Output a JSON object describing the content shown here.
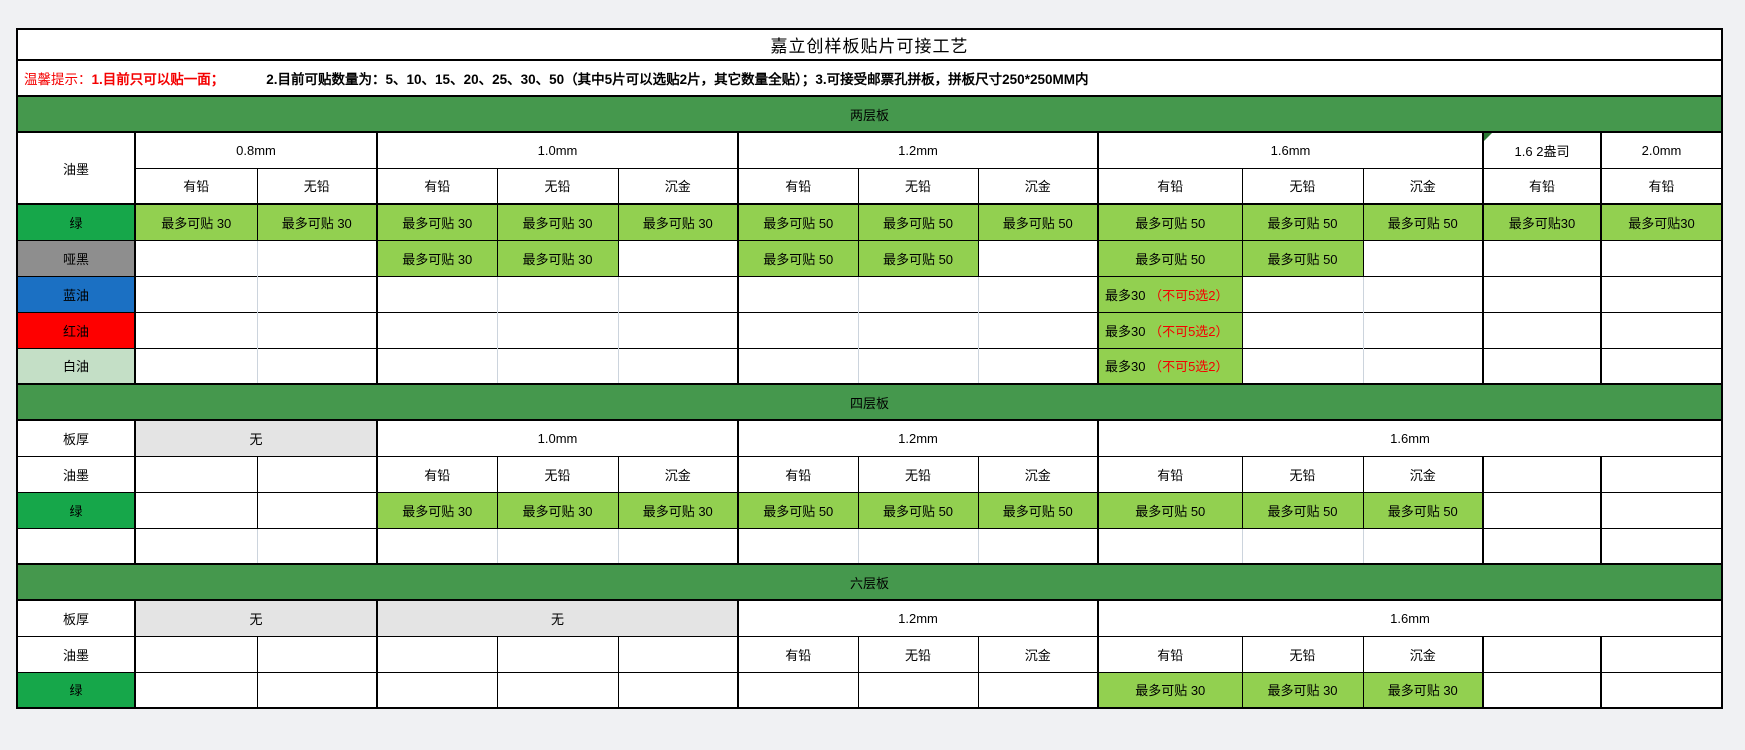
{
  "page": {
    "title": "嘉立创样板贴片可接工艺"
  },
  "tip": {
    "label": "温馨提示：",
    "items": [
      {
        "t": "1.目前只可以贴一面；",
        "red": true,
        "gap": true
      },
      {
        "t": "2.目前可贴数量为：5、10、15、20、25、30、50（其中5片可以选贴2片，其它数量全贴）；",
        "red": false,
        "gap": false
      },
      {
        "t": "3.可接受邮票孔拼板，拼板尺寸250*250MM内",
        "red": false,
        "gap": false
      }
    ]
  },
  "colors": {
    "band": "#45984d",
    "label_green": "#16a74a",
    "cell_green": "#92d050",
    "label_gray": "#8e8e8e",
    "label_blue": "#1b70c3",
    "label_red": "#fe0000",
    "label_white_oil": "#c4dfc6",
    "fill_gray": "#e4e4e4",
    "red_text": "#f40000",
    "grid_light": "#ccd4dd",
    "page_bg": "#f0f1f3"
  },
  "table": {
    "rows": [
      {
        "name": "title-row",
        "cls": "title",
        "cells": [
          {
            "t": "嘉立创样板贴片可接工艺",
            "cs": 14,
            "n": "page-title"
          }
        ]
      },
      {
        "name": "tip-row",
        "cls": "tip",
        "tip": true
      },
      {
        "name": "section-band-two-layer",
        "cls": "band",
        "cells": [
          {
            "t": "两层板",
            "cs": 14,
            "bg": "band",
            "n": "section-title-two-layer"
          }
        ]
      },
      {
        "name": "two-layer-thickness-header",
        "cell_name": "thickness-header",
        "cells": [
          {
            "t": "油墨",
            "rs": 2,
            "n": "ink-corner-header"
          },
          {
            "t": "0.8mm",
            "cs": 2
          },
          {
            "t": "1.0mm",
            "cs": 3
          },
          {
            "t": "1.2mm",
            "cs": 3
          },
          {
            "t": "1.6mm",
            "cs": 3
          },
          {
            "t": "1.6  2盎司",
            "flag": true
          },
          {
            "t": "2.0mm"
          }
        ]
      },
      {
        "name": "two-layer-process-header",
        "offset": 1,
        "cell_name": "process-header",
        "cells": [
          {
            "t": "有铅"
          },
          {
            "t": "无铅"
          },
          {
            "t": "有铅"
          },
          {
            "t": "无铅"
          },
          {
            "t": "沉金"
          },
          {
            "t": "有铅"
          },
          {
            "t": "无铅"
          },
          {
            "t": "沉金"
          },
          {
            "t": "有铅"
          },
          {
            "t": "无铅"
          },
          {
            "t": "沉金"
          },
          {
            "t": "有铅"
          },
          {
            "t": "有铅"
          }
        ]
      },
      {
        "name": "row-green",
        "cls": "firstdata",
        "cell_name": "capacity-cell",
        "cells": [
          {
            "t": "绿",
            "bg": "label_green",
            "n": "row-label-green"
          },
          {
            "t": "最多可贴 30",
            "bg": "cell_green"
          },
          {
            "t": "最多可贴 30",
            "bg": "cell_green"
          },
          {
            "t": "最多可贴 30",
            "bg": "cell_green"
          },
          {
            "t": "最多可贴 30",
            "bg": "cell_green"
          },
          {
            "t": "最多可贴 30",
            "bg": "cell_green"
          },
          {
            "t": "最多可贴 50",
            "bg": "cell_green"
          },
          {
            "t": "最多可贴 50",
            "bg": "cell_green"
          },
          {
            "t": "最多可贴 50",
            "bg": "cell_green"
          },
          {
            "t": "最多可贴 50",
            "bg": "cell_green"
          },
          {
            "t": "最多可贴 50",
            "bg": "cell_green"
          },
          {
            "t": "最多可贴 50",
            "bg": "cell_green"
          },
          {
            "t": "最多可贴30",
            "bg": "cell_green"
          },
          {
            "t": "最多可贴30",
            "bg": "cell_green"
          }
        ]
      },
      {
        "name": "row-matte-black",
        "lite": true,
        "cell_name": "capacity-cell",
        "cells": [
          {
            "t": "哑黑",
            "bg": "label_gray",
            "n": "row-label-matte-black"
          },
          {
            "t": ""
          },
          {
            "t": ""
          },
          {
            "t": "最多可贴 30",
            "bg": "cell_green"
          },
          {
            "t": "最多可贴 30",
            "bg": "cell_green"
          },
          {
            "t": ""
          },
          {
            "t": "最多可贴 50",
            "bg": "cell_green"
          },
          {
            "t": "最多可贴 50",
            "bg": "cell_green"
          },
          {
            "t": ""
          },
          {
            "t": "最多可贴 50",
            "bg": "cell_green"
          },
          {
            "t": "最多可贴 50",
            "bg": "cell_green"
          },
          {
            "t": ""
          },
          {
            "t": ""
          },
          {
            "t": ""
          }
        ]
      },
      {
        "name": "row-blue-oil",
        "lite": true,
        "cell_name": "capacity-cell",
        "cells": [
          {
            "t": "蓝油",
            "bg": "label_blue",
            "n": "row-label-blue-oil"
          },
          {
            "t": ""
          },
          {
            "t": ""
          },
          {
            "t": ""
          },
          {
            "t": ""
          },
          {
            "t": ""
          },
          {
            "t": ""
          },
          {
            "t": ""
          },
          {
            "t": ""
          },
          {
            "parts": [
              {
                "t": "最多30 "
              },
              {
                "t": "（不可5选2）",
                "red": true
              }
            ],
            "bg": "cell_green",
            "al": "l",
            "n": "limit-note-cell"
          },
          {
            "t": ""
          },
          {
            "t": ""
          },
          {
            "t": ""
          },
          {
            "t": ""
          }
        ]
      },
      {
        "name": "row-red-oil",
        "lite": true,
        "cell_name": "capacity-cell",
        "cells": [
          {
            "t": "红油",
            "bg": "label_red",
            "n": "row-label-red-oil"
          },
          {
            "t": ""
          },
          {
            "t": ""
          },
          {
            "t": ""
          },
          {
            "t": ""
          },
          {
            "t": ""
          },
          {
            "t": ""
          },
          {
            "t": ""
          },
          {
            "t": ""
          },
          {
            "parts": [
              {
                "t": "最多30 "
              },
              {
                "t": "（不可5选2）",
                "red": true
              }
            ],
            "bg": "cell_green",
            "al": "l",
            "n": "limit-note-cell"
          },
          {
            "t": ""
          },
          {
            "t": ""
          },
          {
            "t": ""
          },
          {
            "t": ""
          }
        ]
      },
      {
        "name": "row-white-oil",
        "lite": true,
        "cell_name": "capacity-cell",
        "cells": [
          {
            "t": "白油",
            "bg": "label_white_oil",
            "n": "row-label-white-oil"
          },
          {
            "t": ""
          },
          {
            "t": ""
          },
          {
            "t": ""
          },
          {
            "t": ""
          },
          {
            "t": ""
          },
          {
            "t": ""
          },
          {
            "t": ""
          },
          {
            "t": ""
          },
          {
            "parts": [
              {
                "t": "最多30 "
              },
              {
                "t": "（不可5选2）",
                "red": true
              }
            ],
            "bg": "cell_green",
            "al": "l",
            "n": "limit-note-cell"
          },
          {
            "t": ""
          },
          {
            "t": ""
          },
          {
            "t": ""
          },
          {
            "t": ""
          }
        ]
      },
      {
        "name": "section-band-four-layer",
        "cls": "band",
        "cells": [
          {
            "t": "四层板",
            "cs": 14,
            "bg": "band",
            "n": "section-title-four-layer"
          }
        ]
      },
      {
        "name": "four-layer-thickness-row",
        "cell_name": "thickness-header",
        "cells": [
          {
            "t": "板厚",
            "n": "thickness-label"
          },
          {
            "t": "无",
            "cs": 2,
            "bg": "fill_gray"
          },
          {
            "t": "1.0mm",
            "cs": 3
          },
          {
            "t": "1.2mm",
            "cs": 3
          },
          {
            "t": "1.6mm",
            "cs": 5
          }
        ]
      },
      {
        "name": "four-layer-ink-header",
        "cell_name": "process-header",
        "cells": [
          {
            "t": "油墨",
            "n": "ink-label"
          },
          {
            "t": ""
          },
          {
            "t": ""
          },
          {
            "t": "有铅"
          },
          {
            "t": "无铅"
          },
          {
            "t": "沉金"
          },
          {
            "t": "有铅"
          },
          {
            "t": "无铅"
          },
          {
            "t": "沉金"
          },
          {
            "t": "有铅"
          },
          {
            "t": "无铅"
          },
          {
            "t": "沉金"
          },
          {
            "t": ""
          },
          {
            "t": ""
          }
        ]
      },
      {
        "name": "four-layer-row-green",
        "cell_name": "capacity-cell",
        "cells": [
          {
            "t": "绿",
            "bg": "label_green",
            "n": "row-label-green"
          },
          {
            "t": ""
          },
          {
            "t": ""
          },
          {
            "t": "最多可贴 30",
            "bg": "cell_green"
          },
          {
            "t": "最多可贴 30",
            "bg": "cell_green"
          },
          {
            "t": "最多可贴 30",
            "bg": "cell_green"
          },
          {
            "t": "最多可贴 50",
            "bg": "cell_green"
          },
          {
            "t": "最多可贴 50",
            "bg": "cell_green"
          },
          {
            "t": "最多可贴 50",
            "bg": "cell_green"
          },
          {
            "t": "最多可贴 50",
            "bg": "cell_green"
          },
          {
            "t": "最多可贴 50",
            "bg": "cell_green"
          },
          {
            "t": "最多可贴 50",
            "bg": "cell_green"
          },
          {
            "t": ""
          },
          {
            "t": ""
          }
        ]
      },
      {
        "name": "four-layer-empty-row",
        "lite": true,
        "cell_name": "empty-cell",
        "cells": [
          {
            "t": ""
          },
          {
            "t": ""
          },
          {
            "t": ""
          },
          {
            "t": ""
          },
          {
            "t": ""
          },
          {
            "t": ""
          },
          {
            "t": ""
          },
          {
            "t": ""
          },
          {
            "t": ""
          },
          {
            "t": ""
          },
          {
            "t": ""
          },
          {
            "t": ""
          },
          {
            "t": ""
          },
          {
            "t": ""
          }
        ]
      },
      {
        "name": "section-band-six-layer",
        "cls": "band",
        "cells": [
          {
            "t": "六层板",
            "cs": 14,
            "bg": "band",
            "n": "section-title-six-layer"
          }
        ]
      },
      {
        "name": "six-layer-thickness-row",
        "cell_name": "thickness-header",
        "cells": [
          {
            "t": "板厚",
            "n": "thickness-label"
          },
          {
            "t": "无",
            "cs": 2,
            "bg": "fill_gray"
          },
          {
            "t": "无",
            "cs": 3,
            "bg": "fill_gray"
          },
          {
            "t": "1.2mm",
            "cs": 3
          },
          {
            "t": "1.6mm",
            "cs": 5
          }
        ]
      },
      {
        "name": "six-layer-ink-header",
        "cell_name": "process-header",
        "cells": [
          {
            "t": "油墨",
            "n": "ink-label"
          },
          {
            "t": ""
          },
          {
            "t": ""
          },
          {
            "t": ""
          },
          {
            "t": ""
          },
          {
            "t": ""
          },
          {
            "t": "有铅"
          },
          {
            "t": "无铅"
          },
          {
            "t": "沉金"
          },
          {
            "t": "有铅"
          },
          {
            "t": "无铅"
          },
          {
            "t": "沉金"
          },
          {
            "t": ""
          },
          {
            "t": ""
          }
        ]
      },
      {
        "name": "six-layer-row-green",
        "cell_name": "capacity-cell",
        "cells": [
          {
            "t": "绿",
            "bg": "label_green",
            "n": "row-label-green"
          },
          {
            "t": ""
          },
          {
            "t": ""
          },
          {
            "t": ""
          },
          {
            "t": ""
          },
          {
            "t": ""
          },
          {
            "t": ""
          },
          {
            "t": ""
          },
          {
            "t": ""
          },
          {
            "t": "最多可贴 30",
            "bg": "cell_green"
          },
          {
            "t": "最多可贴 30",
            "bg": "cell_green"
          },
          {
            "t": "最多可贴 30",
            "bg": "cell_green"
          },
          {
            "t": ""
          },
          {
            "t": ""
          }
        ]
      }
    ]
  }
}
